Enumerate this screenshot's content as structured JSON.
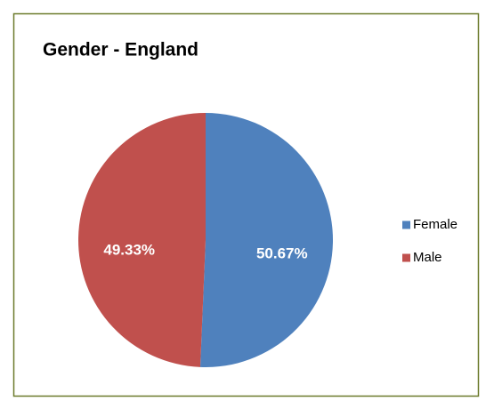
{
  "chart_data": {
    "type": "pie",
    "title": "Gender - England",
    "categories": [
      "Female",
      "Male"
    ],
    "values": [
      50.67,
      49.33
    ],
    "value_labels": [
      "50.67%",
      "49.33%"
    ],
    "colors": [
      "#4f81bd",
      "#c0504d"
    ],
    "legend": "right"
  }
}
